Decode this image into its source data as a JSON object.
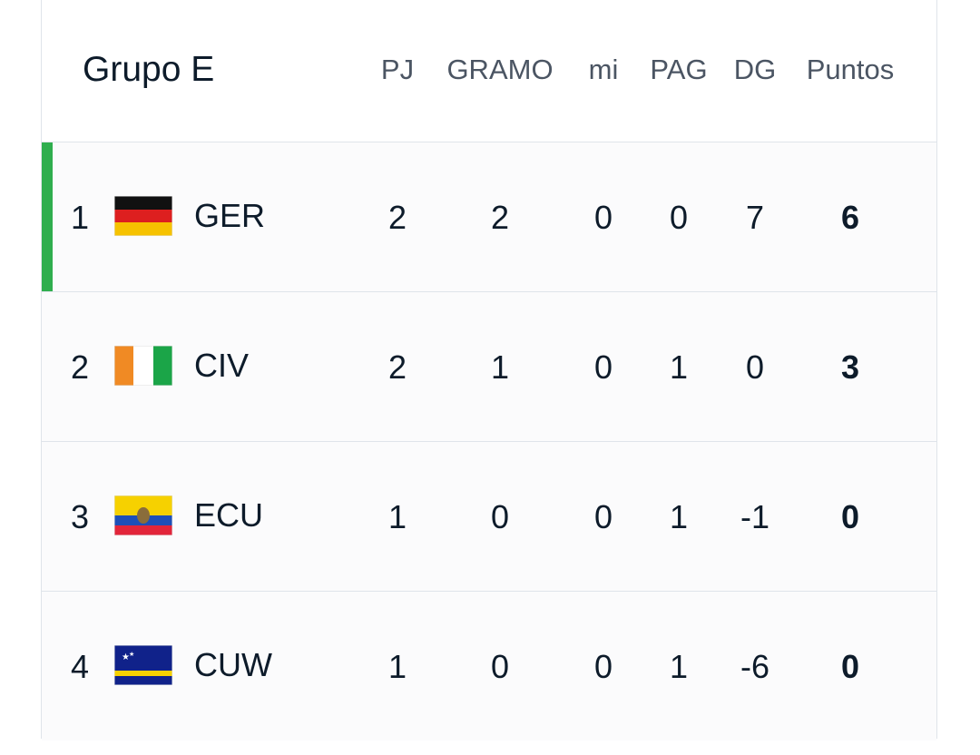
{
  "header": {
    "title": "Grupo E",
    "columns": [
      "PJ",
      "GRAMO",
      "mi",
      "PAG",
      "DG",
      "Puntos"
    ]
  },
  "table": {
    "rows": [
      {
        "rank": 1,
        "team": "GER",
        "cells": [
          2,
          2,
          0,
          0,
          7,
          6
        ]
      },
      {
        "rank": 2,
        "team": "CIV",
        "cells": [
          2,
          1,
          0,
          1,
          0,
          3
        ]
      },
      {
        "rank": 3,
        "team": "ECU",
        "cells": [
          1,
          0,
          0,
          1,
          -1,
          0
        ]
      },
      {
        "rank": 4,
        "team": "CUW",
        "cells": [
          1,
          0,
          0,
          1,
          -6,
          0
        ]
      }
    ]
  }
}
